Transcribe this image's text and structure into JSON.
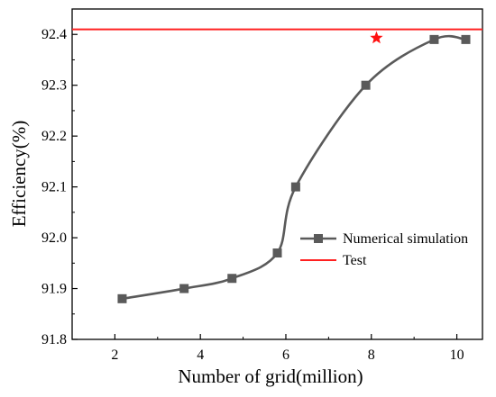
{
  "chart_data": {
    "type": "line",
    "title": "",
    "xlabel": "Number of grid(million)",
    "ylabel": "Efficiency(%)",
    "xlim": [
      1,
      10.6
    ],
    "ylim": [
      91.8,
      92.45
    ],
    "xticks": [
      "2",
      "4",
      "6",
      "8",
      "10"
    ],
    "yticks": [
      "91.8",
      "91.9",
      "92.0",
      "92.1",
      "92.2",
      "92.3",
      "92.4"
    ],
    "grid": false,
    "legend_position": "right-middle",
    "series": [
      {
        "name": "Numerical simulation",
        "color": "#5a5a5a",
        "marker": "square",
        "x": [
          2.17,
          3.62,
          4.74,
          5.8,
          6.23,
          7.87,
          9.47,
          10.21
        ],
        "y": [
          91.88,
          91.9,
          91.92,
          91.97,
          92.1,
          92.3,
          92.39,
          92.39
        ]
      },
      {
        "name": "Test",
        "color": "#ff2020",
        "type": "hline",
        "y": 92.41
      }
    ],
    "annotations": [
      {
        "type": "star-marker",
        "color": "#ff1010",
        "x": 8.12,
        "y": 92.393
      }
    ]
  }
}
